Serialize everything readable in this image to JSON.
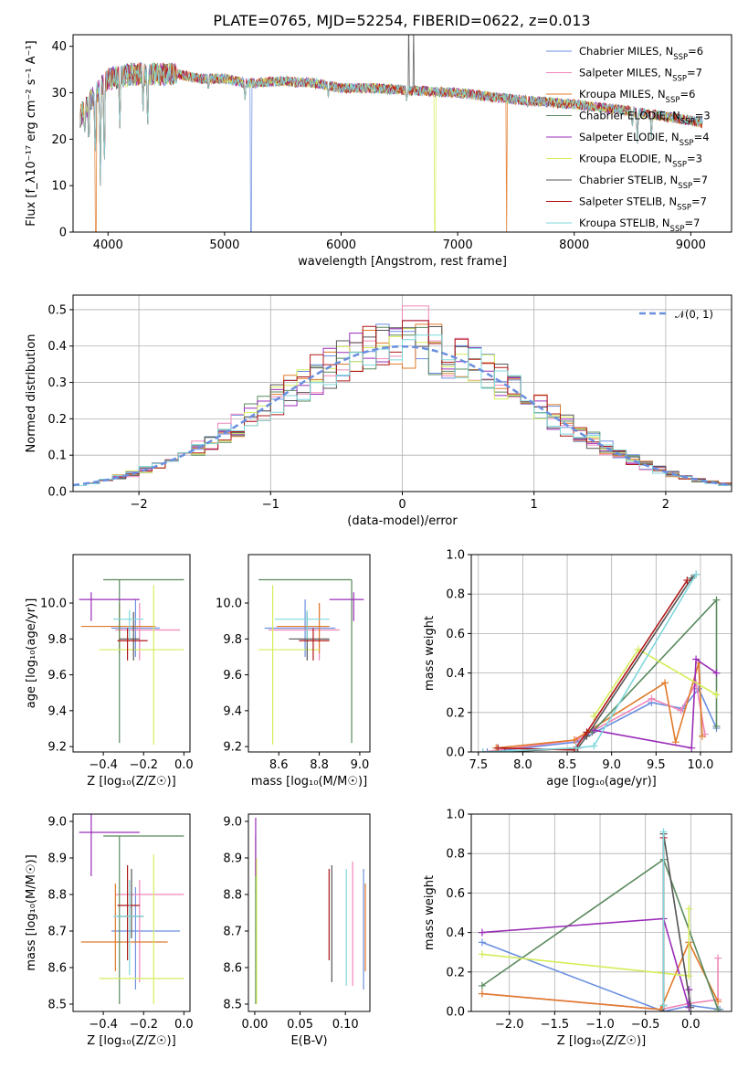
{
  "figure": {
    "title": "PLATE=0765, MJD=52254, FIBERID=0622, z=0.013"
  },
  "colors": {
    "Chabrier MILES": "#6a8fe0",
    "Salpeter MILES": "#ef86b8",
    "Kroupa MILES": "#e07a2a",
    "Chabrier ELODIE": "#5a8a5e",
    "Salpeter ELODIE": "#9a2db8",
    "Kroupa ELODIE": "#d4ee5a",
    "Chabrier STELIB": "#555555",
    "Salpeter STELIB": "#b01818",
    "Kroupa STELIB": "#7fd8dc"
  },
  "chart_data": [
    {
      "type": "line",
      "title": "PLATE=0765, MJD=52254, FIBERID=0622, z=0.013",
      "xlabel": "wavelength [Angstrom, rest frame]",
      "ylabel": "Flux [f_λ10⁻¹⁷ erg cm⁻² s⁻¹ A⁻¹]",
      "xlim": [
        3700,
        9350
      ],
      "ylim": [
        0,
        42.5
      ],
      "xticks": [
        "4000",
        "5000",
        "6000",
        "7000",
        "8000",
        "9000"
      ],
      "yticks": [
        "0",
        "10",
        "20",
        "30",
        "40"
      ],
      "legend_position": "top-right",
      "series": [
        {
          "name": "Chabrier MILES, N_SSP=6",
          "label_main": "Chabrier MILES, N",
          "label_sub": "SSP",
          "label_end": "=6"
        },
        {
          "name": "Salpeter MILES, N_SSP=7",
          "label_main": "Salpeter MILES, N",
          "label_sub": "SSP",
          "label_end": "=7"
        },
        {
          "name": "Kroupa MILES, N_SSP=6",
          "label_main": "Kroupa MILES, N",
          "label_sub": "SSP",
          "label_end": "=6"
        },
        {
          "name": "Chabrier ELODIE, N_SSP=3",
          "label_main": "Chabrier ELODIE, N",
          "label_sub": "SSP",
          "label_end": "=3"
        },
        {
          "name": "Salpeter ELODIE, N_SSP=4",
          "label_main": "Salpeter ELODIE, N",
          "label_sub": "SSP",
          "label_end": "=4"
        },
        {
          "name": "Kroupa ELODIE, N_SSP=3",
          "label_main": "Kroupa ELODIE, N",
          "label_sub": "SSP",
          "label_end": "=3"
        },
        {
          "name": "Chabrier STELIB, N_SSP=7",
          "label_main": "Chabrier STELIB, N",
          "label_sub": "SSP",
          "label_end": "=7"
        },
        {
          "name": "Salpeter STELIB, N_SSP=7",
          "label_main": "Salpeter STELIB, N",
          "label_sub": "SSP",
          "label_end": "=7"
        },
        {
          "name": "Kroupa STELIB, N_SSP=7",
          "label_main": "Kroupa STELIB, N",
          "label_sub": "SSP",
          "label_end": "=7"
        }
      ],
      "spectrum_shape": {
        "continuum": [
          [
            3760,
            25
          ],
          [
            3900,
            30
          ],
          [
            4000,
            33
          ],
          [
            4200,
            34
          ],
          [
            4400,
            34
          ],
          [
            4600,
            34
          ],
          [
            4800,
            33
          ],
          [
            5000,
            33
          ],
          [
            5200,
            32
          ],
          [
            5500,
            32.5
          ],
          [
            5800,
            32
          ],
          [
            6000,
            31
          ],
          [
            6300,
            31
          ],
          [
            6600,
            30.5
          ],
          [
            7000,
            30
          ],
          [
            7500,
            28.5
          ],
          [
            8000,
            27.5
          ],
          [
            8500,
            26
          ],
          [
            9000,
            24
          ],
          [
            9100,
            23.5
          ]
        ],
        "absorption_lines": [
          [
            3800,
            20
          ],
          [
            3835,
            17
          ],
          [
            3890,
            14
          ],
          [
            3934,
            10
          ],
          [
            3968,
            11
          ],
          [
            4101,
            21
          ],
          [
            4300,
            26
          ],
          [
            4340,
            20
          ],
          [
            4861,
            30
          ],
          [
            5175,
            28
          ],
          [
            5890,
            29
          ],
          [
            6563,
            28
          ],
          [
            7600,
            27
          ],
          [
            8498,
            22
          ],
          [
            8542,
            19
          ],
          [
            8662,
            20
          ]
        ],
        "model_dropouts": [
          {
            "series": 2,
            "wavelength": 3895
          },
          {
            "series": 0,
            "wavelength": 5225
          },
          {
            "series": 5,
            "wavelength": 6805
          },
          {
            "series": 2,
            "wavelength": 7420
          }
        ],
        "spikes": [
          {
            "wavelength": 6580,
            "peak": 48
          },
          {
            "wavelength": 6620,
            "peak": 45
          }
        ]
      }
    },
    {
      "type": "line",
      "xlabel": "(data-model)/error",
      "ylabel": "Normed distribution",
      "xlim": [
        -2.5,
        2.5
      ],
      "ylim": [
        0,
        0.54
      ],
      "xticks": [
        "−2",
        "−1",
        "0",
        "1",
        "2"
      ],
      "yticks": [
        "0.0",
        "0.1",
        "0.2",
        "0.3",
        "0.4",
        "0.5"
      ],
      "grid": true,
      "bin_width": 0.1,
      "legend_position": "top-right",
      "reference": {
        "name": "𝒩(0, 1)",
        "distribution": "normal",
        "mean": 0,
        "sigma": 1
      },
      "series": [
        {
          "name": "Chabrier MILES",
          "peak": 0.44
        },
        {
          "name": "Salpeter MILES",
          "peak": 0.51
        },
        {
          "name": "Kroupa MILES",
          "peak": 0.46
        },
        {
          "name": "Chabrier ELODIE",
          "peak": 0.43
        },
        {
          "name": "Salpeter ELODIE",
          "peak": 0.47
        },
        {
          "name": "Kroupa ELODIE",
          "peak": 0.41
        },
        {
          "name": "Chabrier STELIB",
          "peak": 0.45
        },
        {
          "name": "Salpeter STELIB",
          "peak": 0.47
        },
        {
          "name": "Kroupa STELIB",
          "peak": 0.43
        }
      ]
    },
    {
      "type": "scatter",
      "xlabel": "Z [log₁₀(Z/Z☉)]",
      "ylabel": "age  [log₁₀(age/yr)]",
      "xlim": [
        -0.55,
        0.03
      ],
      "ylim": [
        9.17,
        10.27
      ],
      "xticks": [
        "−0.4",
        "−0.2",
        "0.0"
      ],
      "yticks": [
        "9.2",
        "9.4",
        "9.6",
        "9.8",
        "10.0"
      ],
      "points": [
        {
          "series": 0,
          "x": -0.24,
          "y": 9.86,
          "xlo": -0.36,
          "xhi": -0.12,
          "ylo": 9.7,
          "yhi": 10.02
        },
        {
          "series": 1,
          "x": -0.22,
          "y": 9.85,
          "xlo": -0.34,
          "xhi": -0.02,
          "ylo": 9.68,
          "yhi": 10.0
        },
        {
          "series": 2,
          "x": -0.32,
          "y": 9.87,
          "xlo": -0.51,
          "xhi": -0.14,
          "ylo": 9.72,
          "yhi": 10.0
        },
        {
          "series": 3,
          "x": -0.32,
          "y": 10.13,
          "xlo": -0.4,
          "xhi": 0.0,
          "ylo": 9.22,
          "yhi": 10.13
        },
        {
          "series": 4,
          "x": -0.46,
          "y": 10.02,
          "xlo": -0.52,
          "xhi": -0.22,
          "ylo": 9.9,
          "yhi": 10.06
        },
        {
          "series": 5,
          "x": -0.15,
          "y": 9.74,
          "xlo": -0.42,
          "xhi": 0.0,
          "ylo": 9.21,
          "yhi": 10.1
        },
        {
          "series": 6,
          "x": -0.25,
          "y": 9.8,
          "xlo": -0.32,
          "xhi": -0.22,
          "ylo": 9.68,
          "yhi": 9.95
        },
        {
          "series": 7,
          "x": -0.28,
          "y": 9.79,
          "xlo": -0.33,
          "xhi": -0.18,
          "ylo": 9.68,
          "yhi": 9.86
        },
        {
          "series": 8,
          "x": -0.27,
          "y": 9.91,
          "xlo": -0.35,
          "xhi": -0.2,
          "ylo": 9.8,
          "yhi": 9.96
        }
      ]
    },
    {
      "type": "scatter",
      "xlabel": "mass [log₁₀(M/M☉)]",
      "ylabel": "",
      "xlim": [
        8.45,
        9.05
      ],
      "ylim": [
        9.17,
        10.27
      ],
      "xticks": [
        "8.6",
        "8.8",
        "9.0"
      ],
      "yticks": [
        "9.2",
        "9.4",
        "9.6",
        "9.8",
        "10.0"
      ],
      "points": [
        {
          "series": 0,
          "x": 8.73,
          "y": 9.86,
          "xlo": 8.53,
          "xhi": 8.88,
          "ylo": 9.7,
          "yhi": 10.02
        },
        {
          "series": 1,
          "x": 8.8,
          "y": 9.85,
          "xlo": 8.55,
          "xhi": 8.9,
          "ylo": 9.68,
          "yhi": 10.0
        },
        {
          "series": 2,
          "x": 8.8,
          "y": 9.87,
          "xlo": 8.59,
          "xhi": 8.85,
          "ylo": 9.72,
          "yhi": 10.0
        },
        {
          "series": 3,
          "x": 8.96,
          "y": 10.13,
          "xlo": 8.5,
          "xhi": 8.96,
          "ylo": 9.22,
          "yhi": 10.13
        },
        {
          "series": 4,
          "x": 8.97,
          "y": 10.02,
          "xlo": 8.85,
          "xhi": 9.02,
          "ylo": 9.9,
          "yhi": 10.06
        },
        {
          "series": 5,
          "x": 8.57,
          "y": 9.74,
          "xlo": 8.5,
          "xhi": 8.8,
          "ylo": 9.21,
          "yhi": 10.1
        },
        {
          "series": 6,
          "x": 8.74,
          "y": 9.8,
          "xlo": 8.65,
          "xhi": 8.85,
          "ylo": 9.68,
          "yhi": 9.95
        },
        {
          "series": 7,
          "x": 8.77,
          "y": 9.79,
          "xlo": 8.7,
          "xhi": 8.85,
          "ylo": 9.68,
          "yhi": 9.86
        },
        {
          "series": 8,
          "x": 8.74,
          "y": 9.91,
          "xlo": 8.58,
          "xhi": 8.85,
          "ylo": 9.8,
          "yhi": 9.96
        }
      ]
    },
    {
      "type": "line",
      "xlabel": "age  [log₁₀(age/yr)]",
      "ylabel": "mass weight",
      "xlim": [
        7.42,
        10.35
      ],
      "ylim": [
        0,
        1.0
      ],
      "xticks": [
        "7.5",
        "8.0",
        "8.5",
        "9.0",
        "9.5",
        "10.0"
      ],
      "yticks": [
        "0.0",
        "0.2",
        "0.4",
        "0.6",
        "0.8",
        "1.0"
      ],
      "grid": true,
      "series": [
        {
          "series": 0,
          "x": [
            7.6,
            8.6,
            9.45,
            9.8,
            9.98,
            10.18
          ],
          "y": [
            0.0,
            0.05,
            0.25,
            0.22,
            0.32,
            0.12
          ]
        },
        {
          "series": 1,
          "x": [
            7.55,
            8.6,
            9.45,
            9.78,
            9.95,
            10.05
          ],
          "y": [
            0.0,
            0.06,
            0.27,
            0.21,
            0.35,
            0.09
          ]
        },
        {
          "series": 2,
          "x": [
            7.7,
            8.58,
            9.6,
            9.72,
            9.98,
            10.02
          ],
          "y": [
            0.02,
            0.06,
            0.35,
            0.05,
            0.45,
            0.08
          ]
        },
        {
          "series": 3,
          "x": [
            8.78,
            10.18,
            10.18
          ],
          "y": [
            0.1,
            0.77,
            0.13
          ]
        },
        {
          "series": 4,
          "x": [
            8.8,
            9.9,
            9.95,
            10.18
          ],
          "y": [
            0.11,
            0.02,
            0.47,
            0.4
          ]
        },
        {
          "series": 5,
          "x": [
            8.8,
            9.3,
            10.18
          ],
          "y": [
            0.18,
            0.52,
            0.29
          ]
        },
        {
          "series": 6,
          "x": [
            7.8,
            8.62,
            8.72,
            9.9,
            9.95
          ],
          "y": [
            0.0,
            0.02,
            0.08,
            0.88,
            0.9
          ]
        },
        {
          "series": 7,
          "x": [
            7.72,
            8.58,
            8.72,
            9.85
          ],
          "y": [
            0.02,
            0.01,
            0.1,
            0.87
          ]
        },
        {
          "series": 8,
          "x": [
            7.55,
            8.6,
            8.8,
            9.95
          ],
          "y": [
            0.0,
            0.02,
            0.03,
            0.9
          ]
        }
      ]
    },
    {
      "type": "scatter",
      "xlabel": "Z [log₁₀(Z/Z☉)]",
      "ylabel": "mass [log₁₀(M/M☉)]",
      "xlim": [
        -0.55,
        0.03
      ],
      "ylim": [
        8.48,
        9.02
      ],
      "xticks": [
        "−0.4",
        "−0.2",
        "0.0"
      ],
      "yticks": [
        "8.5",
        "8.6",
        "8.7",
        "8.8",
        "8.9",
        "9.0"
      ],
      "points": [
        {
          "series": 0,
          "x": -0.24,
          "y": 8.7,
          "xlo": -0.36,
          "xhi": -0.02,
          "ylo": 8.54,
          "yhi": 8.82
        },
        {
          "series": 1,
          "x": -0.22,
          "y": 8.8,
          "xlo": -0.34,
          "xhi": 0.0,
          "ylo": 8.56,
          "yhi": 8.84
        },
        {
          "series": 2,
          "x": -0.34,
          "y": 8.67,
          "xlo": -0.51,
          "xhi": -0.08,
          "ylo": 8.59,
          "yhi": 8.83
        },
        {
          "series": 3,
          "x": -0.32,
          "y": 8.96,
          "xlo": -0.4,
          "xhi": 0.0,
          "ylo": 8.5,
          "yhi": 8.96
        },
        {
          "series": 4,
          "x": -0.46,
          "y": 8.97,
          "xlo": -0.52,
          "xhi": -0.22,
          "ylo": 8.85,
          "yhi": 9.02
        },
        {
          "series": 5,
          "x": -0.15,
          "y": 8.57,
          "xlo": -0.42,
          "xhi": 0.0,
          "ylo": 8.5,
          "yhi": 8.91
        },
        {
          "series": 6,
          "x": -0.26,
          "y": 8.74,
          "xlo": -0.33,
          "xhi": -0.2,
          "ylo": 8.68,
          "yhi": 8.87
        },
        {
          "series": 7,
          "x": -0.28,
          "y": 8.77,
          "xlo": -0.33,
          "xhi": -0.22,
          "ylo": 8.62,
          "yhi": 8.88
        },
        {
          "series": 8,
          "x": -0.27,
          "y": 8.74,
          "xlo": -0.35,
          "xhi": -0.2,
          "ylo": 8.58,
          "yhi": 8.84
        }
      ]
    },
    {
      "type": "scatter",
      "xlabel": "E(B-V)",
      "ylabel": "",
      "xlim": [
        -0.007,
        0.127
      ],
      "ylim": [
        8.48,
        9.02
      ],
      "xticks": [
        "0.00",
        "0.05",
        "0.10"
      ],
      "yticks": [
        "8.5",
        "8.6",
        "8.7",
        "8.8",
        "8.9",
        "9.0"
      ],
      "points": [
        {
          "series": 0,
          "x": 0.12,
          "ylo": 8.54,
          "yhi": 8.87
        },
        {
          "series": 1,
          "x": 0.108,
          "ylo": 8.55,
          "yhi": 8.89
        },
        {
          "series": 2,
          "x": 0.122,
          "ylo": 8.59,
          "yhi": 8.83
        },
        {
          "series": 3,
          "x": 0.001,
          "ylo": 8.5,
          "yhi": 8.96
        },
        {
          "series": 4,
          "x": 0.001,
          "ylo": 8.85,
          "yhi": 9.01
        },
        {
          "series": 5,
          "x": 0.002,
          "ylo": 8.5,
          "yhi": 8.9
        },
        {
          "series": 6,
          "x": 0.085,
          "ylo": 8.56,
          "yhi": 8.88
        },
        {
          "series": 7,
          "x": 0.082,
          "ylo": 8.62,
          "yhi": 8.87
        },
        {
          "series": 8,
          "x": 0.101,
          "ylo": 8.55,
          "yhi": 8.87
        }
      ]
    },
    {
      "type": "line",
      "xlabel": "Z [log₁₀(Z/Z☉)]",
      "ylabel": "mass weight",
      "xlim": [
        -2.42,
        0.45
      ],
      "ylim": [
        0,
        1.0
      ],
      "xticks": [
        "−2.0",
        "−1.5",
        "−1.0",
        "−0.5",
        "0.0"
      ],
      "yticks": [
        "0.0",
        "0.2",
        "0.4",
        "0.6",
        "0.8",
        "1.0"
      ],
      "grid": true,
      "series": [
        {
          "series": 0,
          "x": [
            -2.3,
            -0.3,
            0.0,
            0.32
          ],
          "y": [
            0.35,
            0.0,
            0.03,
            0.01
          ]
        },
        {
          "series": 1,
          "x": [
            -2.3,
            -0.33,
            -0.02,
            0.3,
            0.3
          ],
          "y": [
            0.09,
            0.01,
            0.04,
            0.06,
            0.27
          ]
        },
        {
          "series": 2,
          "x": [
            -2.3,
            -0.33,
            -0.02,
            0.3
          ],
          "y": [
            0.09,
            0.01,
            0.35,
            0.05
          ]
        },
        {
          "series": 3,
          "x": [
            -2.3,
            -0.3,
            0.3
          ],
          "y": [
            0.13,
            0.77,
            0.01
          ]
        },
        {
          "series": 4,
          "x": [
            -2.3,
            -0.3,
            -0.02,
            -0.02
          ],
          "y": [
            0.4,
            0.47,
            0.02,
            0.11
          ]
        },
        {
          "series": 5,
          "x": [
            -2.3,
            -0.02,
            -0.02
          ],
          "y": [
            0.29,
            0.18,
            0.52
          ]
        },
        {
          "series": 6,
          "x": [
            -0.3,
            -0.3,
            0.0
          ],
          "y": [
            0.0,
            0.9,
            0.02
          ]
        },
        {
          "series": 7,
          "x": [
            -0.3,
            -0.3
          ],
          "y": [
            0.03,
            0.88
          ]
        },
        {
          "series": 8,
          "x": [
            -0.3,
            -0.3
          ],
          "y": [
            0.03,
            0.91
          ]
        }
      ]
    }
  ]
}
